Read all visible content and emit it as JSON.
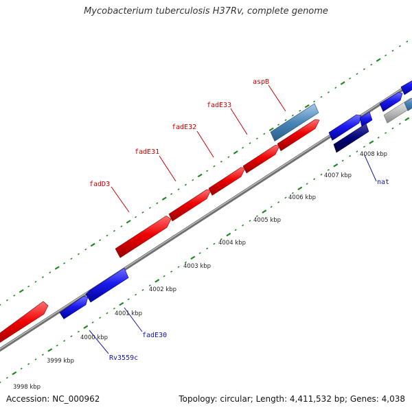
{
  "title": "Mycobacterium tuberculosis H37Rv, complete genome",
  "footer": {
    "accession": "Accession: NC_000962",
    "topology": "Topology: circular; Length: 4,411,532 bp; Genes: 4,038"
  },
  "colors": {
    "forward_gene": "#dd0000",
    "forward_label": "#cc0000",
    "reverse_gene": "#1111dd",
    "reverse_label": "#1111aa",
    "reverse_dark_gene": "#000077",
    "highlight_gene": "#4a86b8",
    "pale_gene": "#bbbbbb",
    "backbone": "#888888",
    "tick_dots": "#228822"
  },
  "ticks": [
    {
      "label": "3998 kbp"
    },
    {
      "label": "3999 kbp"
    },
    {
      "label": "4000 kbp"
    },
    {
      "label": "4001 kbp"
    },
    {
      "label": "4002 kbp"
    },
    {
      "label": "4003 kbp"
    },
    {
      "label": "4004 kbp"
    },
    {
      "label": "4005 kbp"
    },
    {
      "label": "4006 kbp"
    },
    {
      "label": "4007 kbp"
    },
    {
      "label": "4008 kbp"
    }
  ],
  "forward_labels": {
    "fadD3": "fadD3",
    "fadE31": "fadE31",
    "fadE32": "fadE32",
    "fadE33": "fadE33",
    "aspB": "aspB"
  },
  "reverse_labels": {
    "nat": "nat",
    "fadE30": "fadE30",
    "Rv3559c": "Rv3559c"
  }
}
